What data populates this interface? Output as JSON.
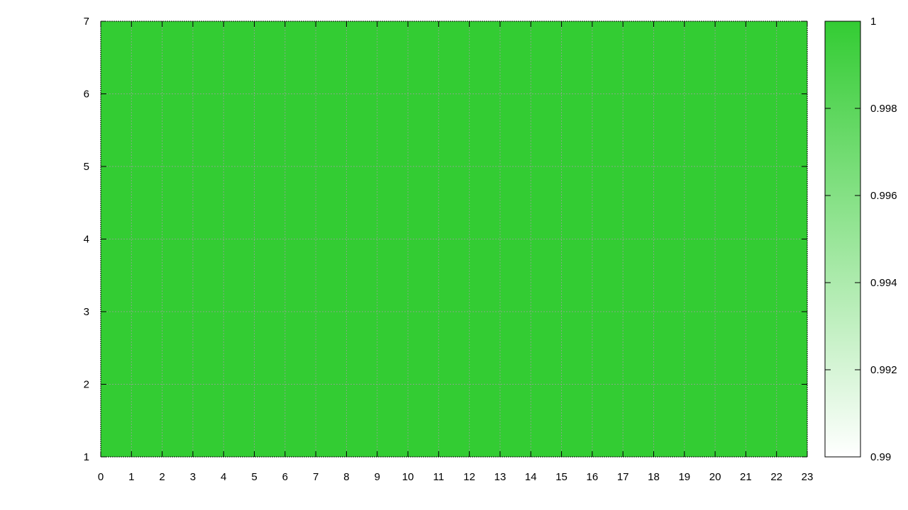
{
  "chart_data": {
    "type": "heatmap",
    "title": "",
    "xlabel": "",
    "ylabel": "",
    "xlim": [
      0,
      23
    ],
    "ylim": [
      1,
      7
    ],
    "x_ticks": [
      "0",
      "1",
      "2",
      "3",
      "4",
      "5",
      "6",
      "7",
      "8",
      "9",
      "10",
      "11",
      "12",
      "13",
      "14",
      "15",
      "16",
      "17",
      "18",
      "19",
      "20",
      "21",
      "22",
      "23"
    ],
    "y_ticks": [
      "1",
      "2",
      "3",
      "4",
      "5",
      "6",
      "7"
    ],
    "grid": true,
    "values_uniform": 1,
    "colorbar": {
      "range": [
        0.99,
        1
      ],
      "ticks": [
        "0.99",
        "0.992",
        "0.994",
        "0.996",
        "0.998",
        "1"
      ],
      "color_low": "#ffffff",
      "color_high": "#33cc33"
    },
    "fill_color": "#33cc33"
  }
}
